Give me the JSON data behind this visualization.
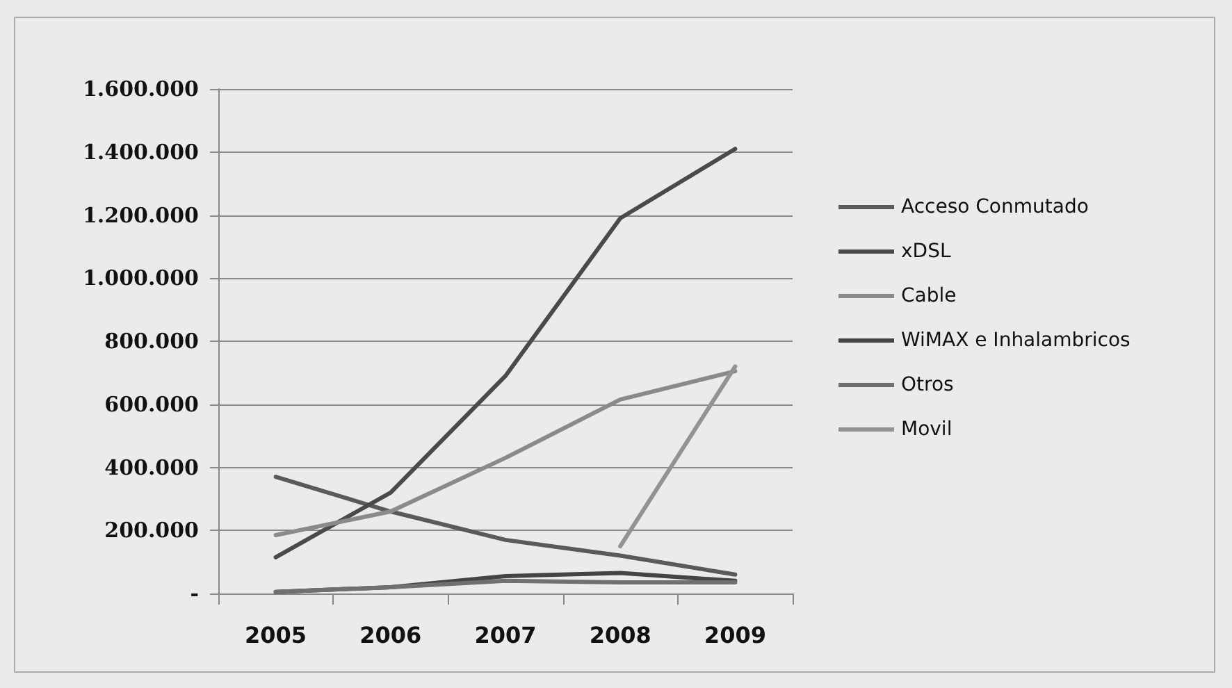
{
  "chart_data": {
    "type": "line",
    "categories": [
      "2005",
      "2006",
      "2007",
      "2008",
      "2009"
    ],
    "series": [
      {
        "name": "Acceso Conmutado",
        "color": "#5a5a5a",
        "values": [
          370000,
          260000,
          170000,
          120000,
          60000
        ]
      },
      {
        "name": "xDSL",
        "color": "#4a4a4a",
        "values": [
          115000,
          320000,
          690000,
          1190000,
          1410000
        ]
      },
      {
        "name": "Cable",
        "color": "#8a8a8a",
        "values": [
          185000,
          260000,
          430000,
          615000,
          705000
        ]
      },
      {
        "name": "WiMAX e Inhalambricos",
        "color": "#444444",
        "values": [
          5000,
          20000,
          55000,
          65000,
          40000
        ]
      },
      {
        "name": "Otros",
        "color": "#707070",
        "values": [
          5000,
          20000,
          40000,
          35000,
          35000
        ]
      },
      {
        "name": "Movil",
        "color": "#939393",
        "values": [
          null,
          null,
          null,
          150000,
          720000
        ]
      }
    ],
    "ylim": [
      0,
      1600000
    ],
    "yticks": [
      {
        "value": 0,
        "label": "-"
      },
      {
        "value": 200000,
        "label": "200.000"
      },
      {
        "value": 400000,
        "label": "400.000"
      },
      {
        "value": 600000,
        "label": "600.000"
      },
      {
        "value": 800000,
        "label": "800.000"
      },
      {
        "value": 1000000,
        "label": "1.000.000"
      },
      {
        "value": 1200000,
        "label": "1.200.000"
      },
      {
        "value": 1400000,
        "label": "1.400.000"
      },
      {
        "value": 1600000,
        "label": "1.600.000"
      }
    ],
    "grid": "y",
    "legend": "right",
    "marker": "none",
    "line_style": "solid"
  }
}
